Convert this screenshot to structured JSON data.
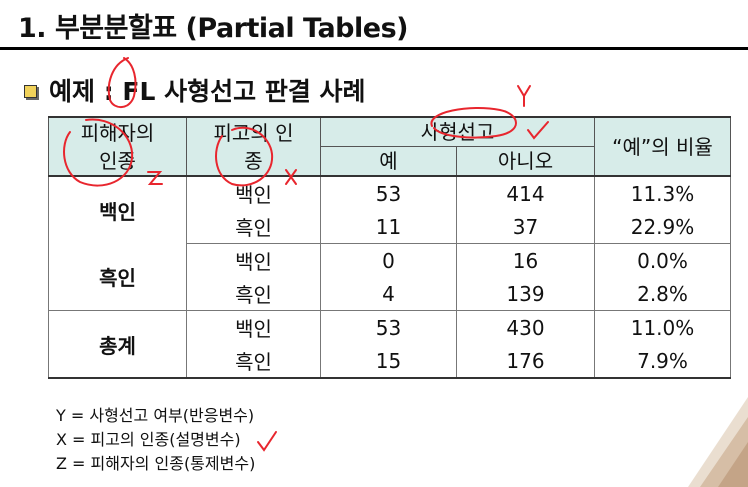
{
  "title": "1. 부분분할표 (Partial Tables)",
  "subtitle": "예제 : FL 사형선고 판결 사례",
  "table": {
    "header": {
      "victim_race": "피해자의 인종",
      "defendant_race": "피고의 인종",
      "death_penalty": "사형선고",
      "yes": "예",
      "no": "아니오",
      "ratio": "“예”의 비율"
    },
    "groups": [
      {
        "label": "백인",
        "rows": [
          {
            "defendant": "백인",
            "yes": "53",
            "no": "414",
            "pct": "11.3%"
          },
          {
            "defendant": "흑인",
            "yes": "11",
            "no": "37",
            "pct": "22.9%"
          }
        ]
      },
      {
        "label": "흑인",
        "rows": [
          {
            "defendant": "백인",
            "yes": "0",
            "no": "16",
            "pct": "0.0%"
          },
          {
            "defendant": "흑인",
            "yes": "4",
            "no": "139",
            "pct": "2.8%"
          }
        ]
      },
      {
        "label": "총계",
        "rows": [
          {
            "defendant": "백인",
            "yes": "53",
            "no": "430",
            "pct": "11.0%"
          },
          {
            "defendant": "흑인",
            "yes": "15",
            "no": "176",
            "pct": "7.9%"
          }
        ]
      }
    ]
  },
  "notes": {
    "y": "Y = 사형선고 여부(반응변수)",
    "x": "X = 피고의 인종(설명변수)",
    "z": "Z = 피해자의 인종(통제변수)"
  },
  "handwriting": {
    "y_mark": "Y",
    "z_mark": "Z",
    "x_mark": "X"
  },
  "colors": {
    "header_bg": "#d7ece9",
    "ink_annotation": "#e8262e",
    "bullet": "#f1d25a"
  }
}
